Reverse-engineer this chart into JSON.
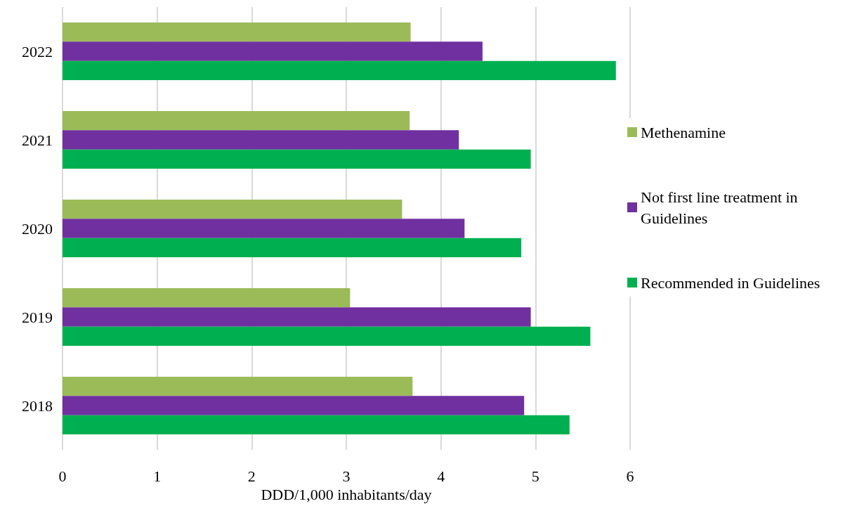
{
  "chart_data": {
    "type": "bar",
    "orientation": "horizontal",
    "xlabel": "DDD/1,000 inhabitants/day",
    "categories": [
      "2022",
      "2021",
      "2020",
      "2019",
      "2018"
    ],
    "series": [
      {
        "name": "Methenamine",
        "color": "#9bbb59",
        "values": [
          3.68,
          3.67,
          3.59,
          3.04,
          3.7
        ]
      },
      {
        "name": "Not first line treatment in Guidelines",
        "color": "#7030a0",
        "values": [
          4.44,
          4.19,
          4.25,
          4.95,
          4.88
        ]
      },
      {
        "name": "Recommended in Guidelines",
        "color": "#00b050",
        "values": [
          5.85,
          4.95,
          4.85,
          5.58,
          5.36
        ]
      }
    ],
    "xlim": [
      0,
      6
    ],
    "xticks": [
      0,
      1,
      2,
      3,
      4,
      5,
      6
    ],
    "grid": "x",
    "legend": "right"
  }
}
